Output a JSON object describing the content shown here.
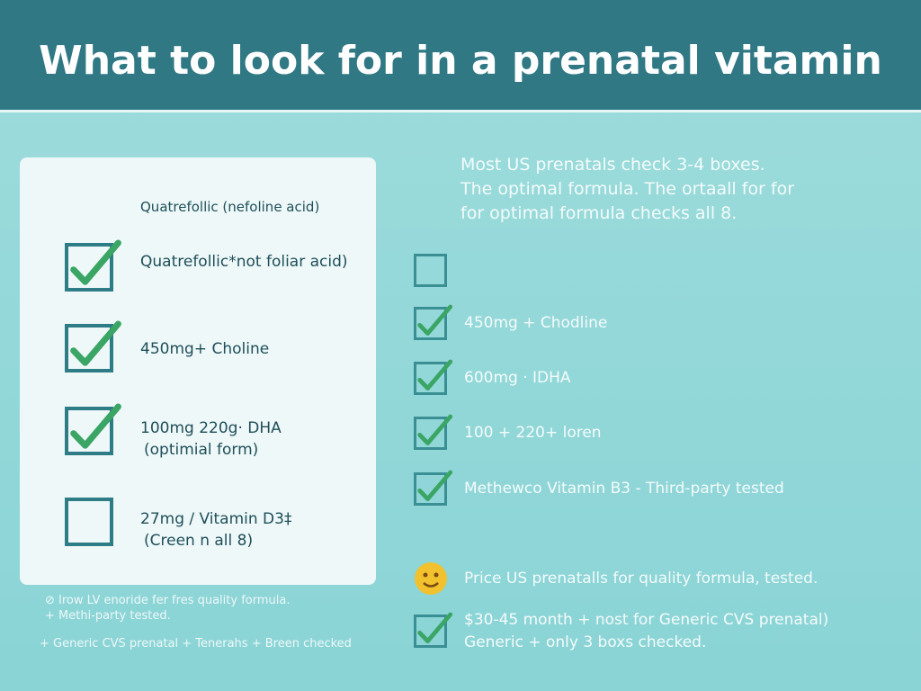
{
  "header": {
    "title": "What to look for in a prenatal vitamin"
  },
  "left_card": {
    "heading": "Quatrefollic (nefoline acid)",
    "items": [
      {
        "checked": true,
        "lines": [
          "Quatrefollic*not foliar acid)"
        ]
      },
      {
        "checked": true,
        "lines": [
          "450mg+ Choline"
        ]
      },
      {
        "checked": true,
        "lines": [
          "100mg 220g· DHA",
          "(optimial form)"
        ]
      },
      {
        "checked": false,
        "lines": [
          "27mg / Vitamin D3‡",
          "(Creen n all 8)"
        ]
      }
    ]
  },
  "left_notes": [
    "⊘ Irow LV enoride fer fres quality formula.",
    "+ Methi-party tested.",
    "+ Generic CVS prenatal + Tenerahs + Breen checked"
  ],
  "right_panel": {
    "intro": [
      "Most US prenatals check 3-4 boxes.",
      "The optimal formula. The ortaall for for",
      "for optimal formula checks all 8."
    ],
    "items": [
      {
        "checked": false,
        "lines": []
      },
      {
        "checked": true,
        "lines": [
          "450mg + Chodline"
        ]
      },
      {
        "checked": true,
        "lines": [
          "600mg · IDHA"
        ]
      },
      {
        "checked": true,
        "lines": [
          "100 + 220+ loren"
        ]
      },
      {
        "checked": true,
        "lines": [
          "Methewco Vitamin B3 - Third-party tested"
        ]
      }
    ],
    "price_note": "Price US prenatalls for quality formula, tested.",
    "generic": {
      "checked": true,
      "lines": [
        "$30-45 month + nost for Generic CVS prenatal)",
        "Generic + only 3 boxs checked."
      ]
    }
  }
}
